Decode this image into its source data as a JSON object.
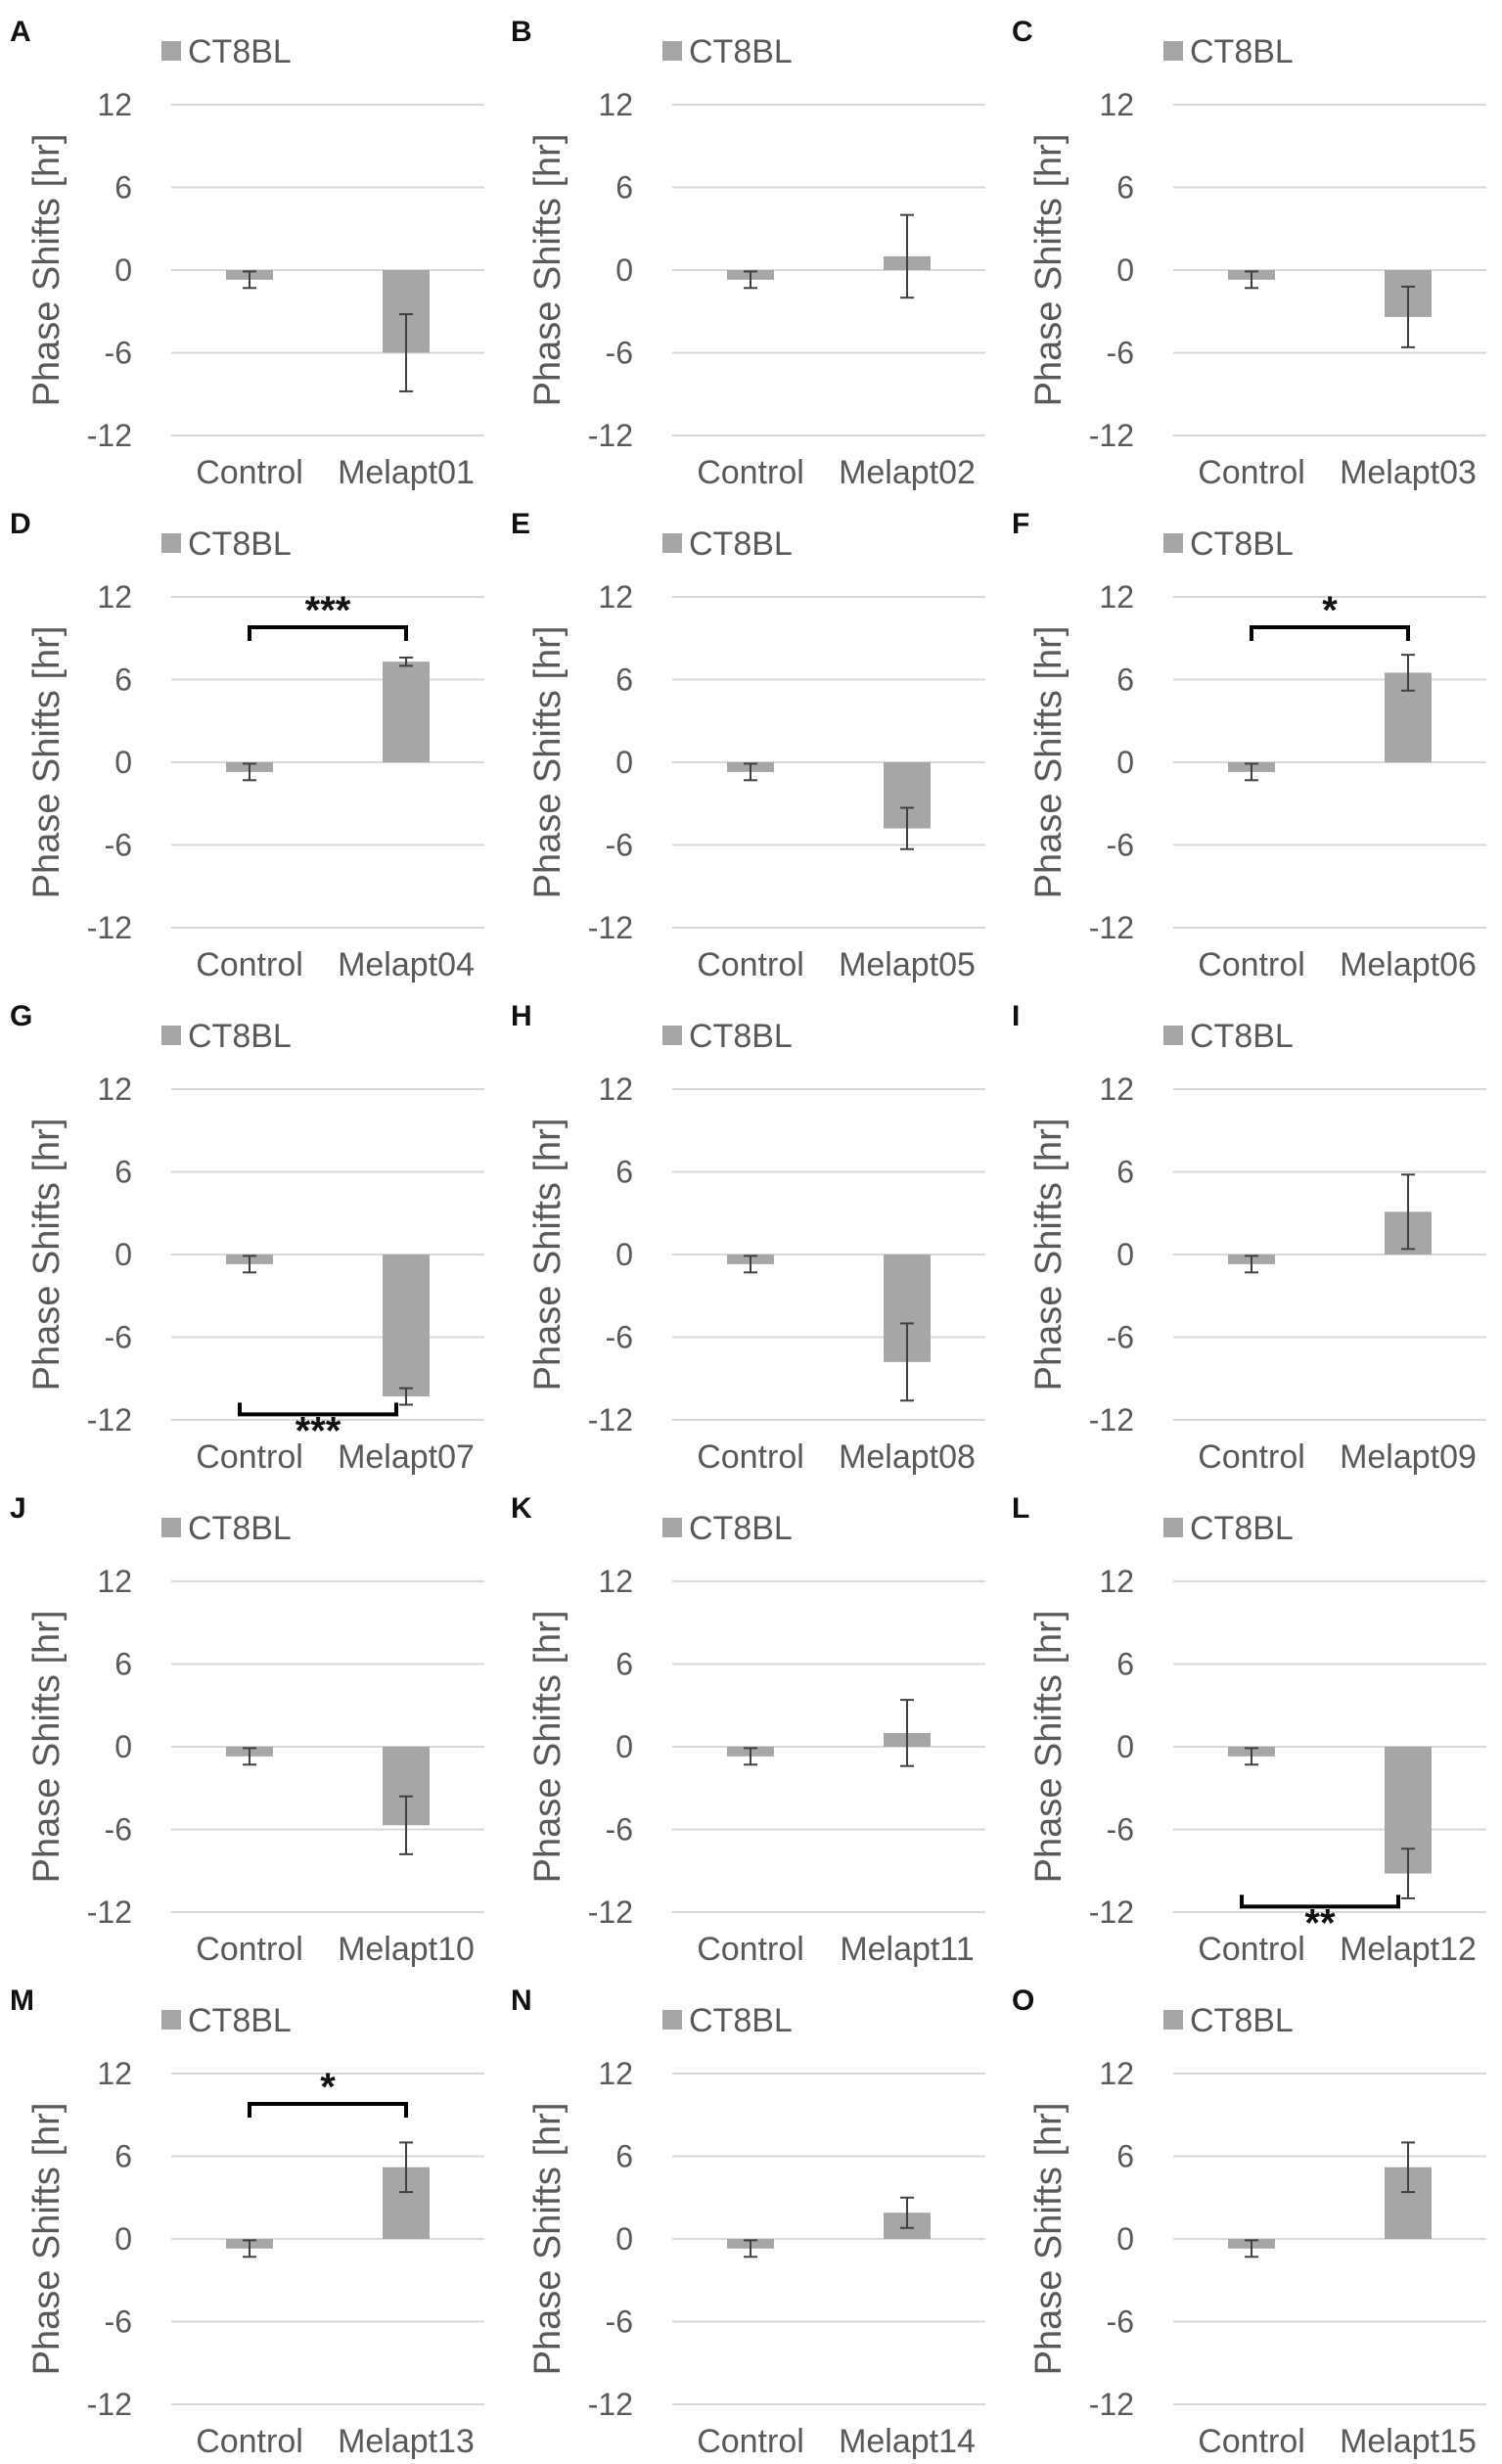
{
  "colors": {
    "bar": "#a6a6a6",
    "grid": "#d9d9d9",
    "text": "#595959",
    "errorbar": "#404040",
    "bracket": "#000000"
  },
  "chart_data": [
    {
      "panel": "A",
      "type": "bar",
      "legend": "CT8BL",
      "ylabel": "Phase Shifts [hr]",
      "ylim": [
        -12,
        12
      ],
      "yticks": [
        "12",
        "6",
        "0",
        "-6",
        "-12"
      ],
      "categories": [
        "Control",
        "Melapt01"
      ],
      "values": [
        -0.7,
        -6.0
      ],
      "errors": [
        0.6,
        2.8
      ],
      "significance": ""
    },
    {
      "panel": "B",
      "type": "bar",
      "legend": "CT8BL",
      "ylabel": "Phase Shifts [hr]",
      "ylim": [
        -12,
        12
      ],
      "yticks": [
        "12",
        "6",
        "0",
        "-6",
        "-12"
      ],
      "categories": [
        "Control",
        "Melapt02"
      ],
      "values": [
        -0.7,
        1.0
      ],
      "errors": [
        0.6,
        3.0
      ],
      "significance": ""
    },
    {
      "panel": "C",
      "type": "bar",
      "legend": "CT8BL",
      "ylabel": "Phase Shifts [hr]",
      "ylim": [
        -12,
        12
      ],
      "yticks": [
        "12",
        "6",
        "0",
        "-6",
        "-12"
      ],
      "categories": [
        "Control",
        "Melapt03"
      ],
      "values": [
        -0.7,
        -3.4
      ],
      "errors": [
        0.6,
        2.2
      ],
      "significance": ""
    },
    {
      "panel": "D",
      "type": "bar",
      "legend": "CT8BL",
      "ylabel": "Phase Shifts [hr]",
      "ylim": [
        -12,
        12
      ],
      "yticks": [
        "12",
        "6",
        "0",
        "-6",
        "-12"
      ],
      "categories": [
        "Control",
        "Melapt04"
      ],
      "values": [
        -0.7,
        7.3
      ],
      "errors": [
        0.6,
        0.3
      ],
      "significance": "***",
      "bracket": "above"
    },
    {
      "panel": "E",
      "type": "bar",
      "legend": "CT8BL",
      "ylabel": "Phase Shifts [hr]",
      "ylim": [
        -12,
        12
      ],
      "yticks": [
        "12",
        "6",
        "0",
        "-6",
        "-12"
      ],
      "categories": [
        "Control",
        "Melapt05"
      ],
      "values": [
        -0.7,
        -4.8
      ],
      "errors": [
        0.6,
        1.5
      ],
      "significance": ""
    },
    {
      "panel": "F",
      "type": "bar",
      "legend": "CT8BL",
      "ylabel": "Phase Shifts [hr]",
      "ylim": [
        -12,
        12
      ],
      "yticks": [
        "12",
        "6",
        "0",
        "-6",
        "-12"
      ],
      "categories": [
        "Control",
        "Melapt06"
      ],
      "values": [
        -0.7,
        6.5
      ],
      "errors": [
        0.6,
        1.3
      ],
      "significance": "*",
      "bracket": "above"
    },
    {
      "panel": "G",
      "type": "bar",
      "legend": "CT8BL",
      "ylabel": "Phase Shifts [hr]",
      "ylim": [
        -12,
        12
      ],
      "yticks": [
        "12",
        "6",
        "0",
        "-6",
        "-12"
      ],
      "categories": [
        "Control",
        "Melapt07"
      ],
      "values": [
        -0.7,
        -10.3
      ],
      "errors": [
        0.6,
        0.6
      ],
      "significance": "***",
      "bracket": "below"
    },
    {
      "panel": "H",
      "type": "bar",
      "legend": "CT8BL",
      "ylabel": "Phase Shifts [hr]",
      "ylim": [
        -12,
        12
      ],
      "yticks": [
        "12",
        "6",
        "0",
        "-6",
        "-12"
      ],
      "categories": [
        "Control",
        "Melapt08"
      ],
      "values": [
        -0.7,
        -7.8
      ],
      "errors": [
        0.6,
        2.8
      ],
      "significance": ""
    },
    {
      "panel": "I",
      "type": "bar",
      "legend": "CT8BL",
      "ylabel": "Phase Shifts [hr]",
      "ylim": [
        -12,
        12
      ],
      "yticks": [
        "12",
        "6",
        "0",
        "-6",
        "-12"
      ],
      "categories": [
        "Control",
        "Melapt09"
      ],
      "values": [
        -0.7,
        3.1
      ],
      "errors": [
        0.6,
        2.7
      ],
      "significance": ""
    },
    {
      "panel": "J",
      "type": "bar",
      "legend": "CT8BL",
      "ylabel": "Phase Shifts [hr]",
      "ylim": [
        -12,
        12
      ],
      "yticks": [
        "12",
        "6",
        "0",
        "-6",
        "-12"
      ],
      "categories": [
        "Control",
        "Melapt10"
      ],
      "values": [
        -0.7,
        -5.7
      ],
      "errors": [
        0.6,
        2.1
      ],
      "significance": ""
    },
    {
      "panel": "K",
      "type": "bar",
      "legend": "CT8BL",
      "ylabel": "Phase Shifts [hr]",
      "ylim": [
        -12,
        12
      ],
      "yticks": [
        "12",
        "6",
        "0",
        "-6",
        "-12"
      ],
      "categories": [
        "Control",
        "Melapt11"
      ],
      "values": [
        -0.7,
        1.0
      ],
      "errors": [
        0.6,
        2.4
      ],
      "significance": ""
    },
    {
      "panel": "L",
      "type": "bar",
      "legend": "CT8BL",
      "ylabel": "Phase Shifts [hr]",
      "ylim": [
        -12,
        12
      ],
      "yticks": [
        "12",
        "6",
        "0",
        "-6",
        "-12"
      ],
      "categories": [
        "Control",
        "Melapt12"
      ],
      "values": [
        -0.7,
        -9.2
      ],
      "errors": [
        0.6,
        1.8
      ],
      "significance": "**",
      "bracket": "below"
    },
    {
      "panel": "M",
      "type": "bar",
      "legend": "CT8BL",
      "ylabel": "Phase Shifts [hr]",
      "ylim": [
        -12,
        12
      ],
      "yticks": [
        "12",
        "6",
        "0",
        "-6",
        "-12"
      ],
      "categories": [
        "Control",
        "Melapt13"
      ],
      "values": [
        -0.7,
        5.2
      ],
      "errors": [
        0.6,
        1.8
      ],
      "significance": "*",
      "bracket": "above"
    },
    {
      "panel": "N",
      "type": "bar",
      "legend": "CT8BL",
      "ylabel": "Phase Shifts [hr]",
      "ylim": [
        -12,
        12
      ],
      "yticks": [
        "12",
        "6",
        "0",
        "-6",
        "-12"
      ],
      "categories": [
        "Control",
        "Melapt14"
      ],
      "values": [
        -0.7,
        1.9
      ],
      "errors": [
        0.6,
        1.1
      ],
      "significance": ""
    },
    {
      "panel": "O",
      "type": "bar",
      "legend": "CT8BL",
      "ylabel": "Phase Shifts [hr]",
      "ylim": [
        -12,
        12
      ],
      "yticks": [
        "12",
        "6",
        "0",
        "-6",
        "-12"
      ],
      "categories": [
        "Control",
        "Melapt15"
      ],
      "values": [
        -0.7,
        5.2
      ],
      "errors": [
        0.6,
        1.8
      ],
      "significance": ""
    }
  ]
}
